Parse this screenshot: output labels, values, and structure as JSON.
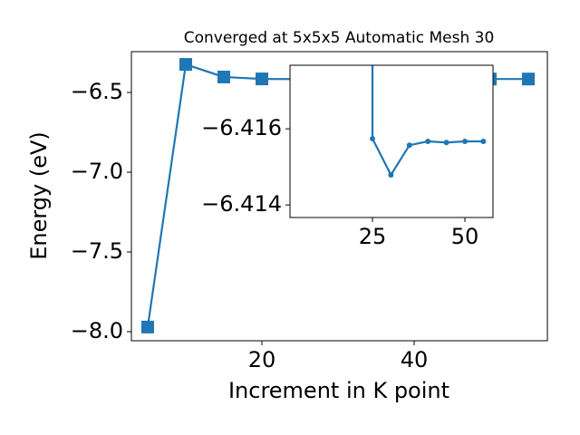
{
  "chart_data": [
    {
      "type": "line",
      "title": "Converged at 5x5x5 Automatic Mesh 30",
      "x_label": "Increment in K point",
      "y_label": "Energy (eV)",
      "x": [
        5,
        10,
        15,
        20,
        25,
        30,
        35,
        40,
        45,
        50,
        55
      ],
      "series": [
        {
          "color": "#1f77b4",
          "marker": "square",
          "values": [
            -7.971,
            -6.324,
            -6.403,
            -6.415,
            -6.41574,
            -6.41479,
            -6.41557,
            -6.41567,
            -6.41564,
            -6.41567,
            -6.41567
          ]
        }
      ],
      "xlim": [
        2.86,
        57.5
      ],
      "xticks": [
        20,
        40
      ],
      "ylim": [
        -8.057,
        -6.244
      ],
      "yticks": [
        {
          "value": -6.5,
          "label": "−6.5"
        },
        {
          "value": -7.0,
          "label": "−7.0"
        },
        {
          "value": -7.5,
          "label": "−7.5"
        },
        {
          "value": -8.0,
          "label": "−8.0"
        }
      ]
    },
    {
      "type": "line",
      "inset": true,
      "y_inverted": true,
      "x": [
        25,
        30,
        35,
        40,
        45,
        50,
        55
      ],
      "series": [
        {
          "color": "#1f77b4",
          "marker": "circle",
          "values": [
            -6.41574,
            -6.41479,
            -6.41557,
            -6.41567,
            -6.41564,
            -6.41567,
            -6.41567
          ]
        }
      ],
      "xlim": [
        2.7,
        57.6
      ],
      "xticks": [
        25,
        50
      ],
      "ylim": [
        -6.41367,
        -6.41767
      ],
      "yticks": [
        {
          "value": -6.416,
          "label": "−6.416"
        },
        {
          "value": -6.414,
          "label": "−6.414"
        }
      ]
    }
  ]
}
